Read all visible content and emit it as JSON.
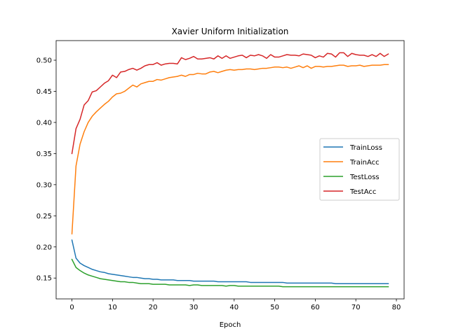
{
  "chart_data": {
    "type": "line",
    "title": "Xavier Uniform Initialization",
    "xlabel": "Epoch",
    "ylabel": "",
    "xlim": [
      -3.9,
      81.9
    ],
    "ylim": [
      0.1165,
      0.5315
    ],
    "xticks": [
      0,
      10,
      20,
      30,
      40,
      50,
      60,
      70,
      80
    ],
    "yticks": [
      0.15,
      0.2,
      0.25,
      0.3,
      0.35,
      0.4,
      0.45,
      0.5
    ],
    "ytick_labels": [
      "0.15",
      "0.20",
      "0.25",
      "0.30",
      "0.35",
      "0.40",
      "0.45",
      "0.50"
    ],
    "grid": false,
    "legend_position": "center-right",
    "x": [
      0,
      1,
      2,
      3,
      4,
      5,
      6,
      7,
      8,
      9,
      10,
      11,
      12,
      13,
      14,
      15,
      16,
      17,
      18,
      19,
      20,
      21,
      22,
      23,
      24,
      25,
      26,
      27,
      28,
      29,
      30,
      31,
      32,
      33,
      34,
      35,
      36,
      37,
      38,
      39,
      40,
      41,
      42,
      43,
      44,
      45,
      46,
      47,
      48,
      49,
      50,
      51,
      52,
      53,
      54,
      55,
      56,
      57,
      58,
      59,
      60,
      61,
      62,
      63,
      64,
      65,
      66,
      67,
      68,
      69,
      70,
      71,
      72,
      73,
      74,
      75,
      76,
      77,
      78
    ],
    "series": [
      {
        "name": "TrainLoss",
        "color": "#1f77b4",
        "values": [
          0.211,
          0.182,
          0.174,
          0.17,
          0.167,
          0.164,
          0.162,
          0.16,
          0.159,
          0.157,
          0.156,
          0.155,
          0.154,
          0.153,
          0.152,
          0.151,
          0.151,
          0.15,
          0.149,
          0.149,
          0.148,
          0.148,
          0.147,
          0.147,
          0.147,
          0.147,
          0.146,
          0.146,
          0.146,
          0.146,
          0.145,
          0.145,
          0.145,
          0.145,
          0.145,
          0.145,
          0.144,
          0.144,
          0.144,
          0.144,
          0.144,
          0.144,
          0.144,
          0.144,
          0.143,
          0.143,
          0.143,
          0.143,
          0.143,
          0.143,
          0.143,
          0.143,
          0.143,
          0.142,
          0.142,
          0.142,
          0.142,
          0.142,
          0.142,
          0.142,
          0.142,
          0.142,
          0.142,
          0.142,
          0.142,
          0.141,
          0.141,
          0.141,
          0.141,
          0.141,
          0.141,
          0.141,
          0.141,
          0.141,
          0.141,
          0.141,
          0.141,
          0.141,
          0.141
        ]
      },
      {
        "name": "TrainAcc",
        "color": "#ff7f0e",
        "values": [
          0.221,
          0.33,
          0.365,
          0.385,
          0.4,
          0.41,
          0.417,
          0.423,
          0.429,
          0.434,
          0.441,
          0.446,
          0.447,
          0.45,
          0.455,
          0.46,
          0.457,
          0.462,
          0.464,
          0.466,
          0.466,
          0.469,
          0.468,
          0.47,
          0.472,
          0.473,
          0.474,
          0.476,
          0.474,
          0.477,
          0.477,
          0.479,
          0.478,
          0.478,
          0.481,
          0.482,
          0.48,
          0.482,
          0.484,
          0.485,
          0.484,
          0.485,
          0.485,
          0.486,
          0.486,
          0.485,
          0.486,
          0.487,
          0.487,
          0.488,
          0.489,
          0.489,
          0.488,
          0.489,
          0.487,
          0.489,
          0.491,
          0.488,
          0.491,
          0.487,
          0.49,
          0.49,
          0.489,
          0.49,
          0.49,
          0.491,
          0.492,
          0.492,
          0.49,
          0.491,
          0.491,
          0.492,
          0.49,
          0.491,
          0.492,
          0.492,
          0.492,
          0.493,
          0.493
        ]
      },
      {
        "name": "TestLoss",
        "color": "#2ca02c",
        "values": [
          0.18,
          0.167,
          0.162,
          0.158,
          0.155,
          0.153,
          0.151,
          0.149,
          0.148,
          0.147,
          0.146,
          0.145,
          0.144,
          0.144,
          0.143,
          0.143,
          0.142,
          0.141,
          0.141,
          0.141,
          0.14,
          0.14,
          0.14,
          0.14,
          0.139,
          0.139,
          0.139,
          0.139,
          0.139,
          0.138,
          0.139,
          0.139,
          0.138,
          0.138,
          0.138,
          0.138,
          0.138,
          0.138,
          0.137,
          0.138,
          0.138,
          0.137,
          0.137,
          0.137,
          0.137,
          0.137,
          0.137,
          0.137,
          0.137,
          0.137,
          0.137,
          0.137,
          0.136,
          0.136,
          0.136,
          0.136,
          0.136,
          0.136,
          0.136,
          0.136,
          0.136,
          0.136,
          0.136,
          0.136,
          0.136,
          0.136,
          0.136,
          0.136,
          0.136,
          0.136,
          0.136,
          0.136,
          0.136,
          0.136,
          0.136,
          0.136,
          0.136,
          0.136,
          0.136
        ]
      },
      {
        "name": "TestAcc",
        "color": "#d62728",
        "values": [
          0.35,
          0.39,
          0.405,
          0.428,
          0.435,
          0.449,
          0.451,
          0.457,
          0.463,
          0.467,
          0.476,
          0.472,
          0.481,
          0.482,
          0.485,
          0.487,
          0.484,
          0.487,
          0.491,
          0.493,
          0.493,
          0.496,
          0.492,
          0.494,
          0.495,
          0.495,
          0.494,
          0.504,
          0.501,
          0.503,
          0.506,
          0.502,
          0.502,
          0.503,
          0.504,
          0.502,
          0.507,
          0.503,
          0.507,
          0.503,
          0.505,
          0.507,
          0.508,
          0.504,
          0.508,
          0.507,
          0.509,
          0.507,
          0.503,
          0.509,
          0.505,
          0.505,
          0.507,
          0.509,
          0.508,
          0.508,
          0.507,
          0.51,
          0.509,
          0.508,
          0.504,
          0.507,
          0.505,
          0.511,
          0.51,
          0.505,
          0.512,
          0.512,
          0.506,
          0.511,
          0.509,
          0.508,
          0.508,
          0.506,
          0.509,
          0.506,
          0.511,
          0.506,
          0.51
        ]
      }
    ]
  }
}
